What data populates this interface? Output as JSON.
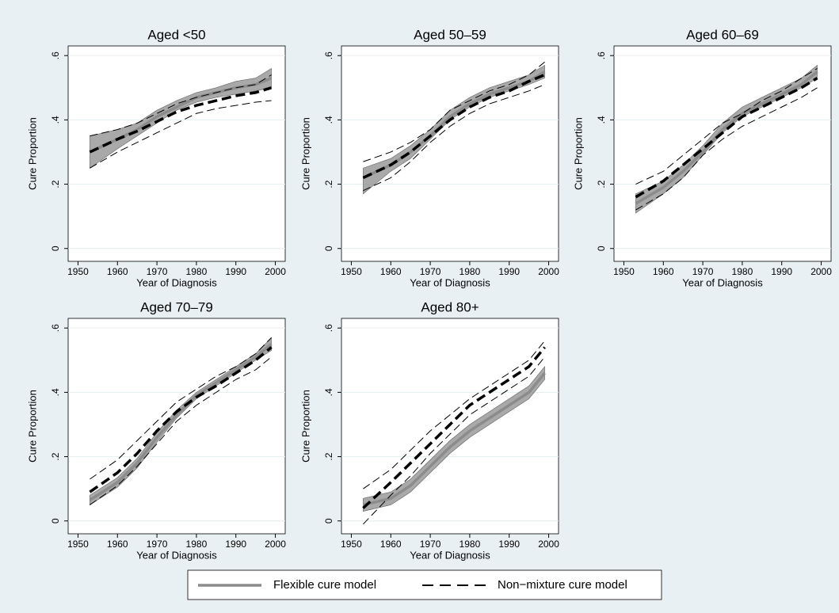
{
  "chart_data": [
    {
      "type": "line",
      "title": "Aged <50",
      "xlabel": "Year of Diagnosis",
      "ylabel": "Cure Proportion",
      "x": [
        1953,
        1960,
        1965,
        1970,
        1975,
        1980,
        1985,
        1990,
        1995,
        1999
      ],
      "xlim": [
        1947.5,
        2002.5
      ],
      "ylim": [
        -0.04,
        0.63
      ],
      "xticks": [
        1950,
        1960,
        1970,
        1980,
        1990,
        2000
      ],
      "yticks": [
        0,
        {
          "value": 0.2,
          "label": ".2"
        },
        {
          "value": 0.4,
          "label": ".4"
        },
        {
          "value": 0.6,
          "label": ".6"
        }
      ],
      "grid": true,
      "series": [
        {
          "color": "#8c8c8c",
          "values": [
            0.3,
            0.34,
            0.37,
            0.41,
            0.44,
            0.47,
            0.485,
            0.5,
            0.51,
            0.53
          ],
          "lower": [
            0.25,
            0.31,
            0.35,
            0.39,
            0.43,
            0.455,
            0.47,
            0.48,
            0.49,
            0.5
          ],
          "upper": [
            0.35,
            0.37,
            0.39,
            0.43,
            0.46,
            0.485,
            0.5,
            0.52,
            0.53,
            0.56
          ]
        },
        {
          "color": "#000000",
          "values": [
            0.3,
            0.34,
            0.365,
            0.395,
            0.425,
            0.445,
            0.46,
            0.475,
            0.485,
            0.5
          ],
          "lower": [
            0.25,
            0.3,
            0.33,
            0.36,
            0.39,
            0.42,
            0.435,
            0.445,
            0.455,
            0.46
          ],
          "upper": [
            0.35,
            0.37,
            0.39,
            0.42,
            0.45,
            0.47,
            0.485,
            0.5,
            0.51,
            0.54
          ]
        }
      ]
    },
    {
      "type": "line",
      "title": "Aged 50–59",
      "xlabel": "Year of Diagnosis",
      "ylabel": "Cure Proportion",
      "x": [
        1953,
        1960,
        1965,
        1970,
        1975,
        1980,
        1985,
        1990,
        1995,
        1999
      ],
      "xlim": [
        1947.5,
        2002.5
      ],
      "ylim": [
        -0.04,
        0.63
      ],
      "xticks": [
        1950,
        1960,
        1970,
        1980,
        1990,
        2000
      ],
      "yticks": [
        0,
        {
          "value": 0.2,
          "label": ".2"
        },
        {
          "value": 0.4,
          "label": ".4"
        },
        {
          "value": 0.6,
          "label": ".6"
        }
      ],
      "grid": true,
      "series": [
        {
          "color": "#8c8c8c",
          "values": [
            0.22,
            0.26,
            0.3,
            0.35,
            0.41,
            0.45,
            0.48,
            0.5,
            0.52,
            0.55
          ],
          "lower": [
            0.17,
            0.24,
            0.28,
            0.34,
            0.4,
            0.44,
            0.47,
            0.49,
            0.51,
            0.53
          ],
          "upper": [
            0.25,
            0.28,
            0.32,
            0.37,
            0.43,
            0.47,
            0.5,
            0.52,
            0.54,
            0.57
          ]
        },
        {
          "color": "#000000",
          "values": [
            0.22,
            0.26,
            0.3,
            0.35,
            0.4,
            0.44,
            0.47,
            0.49,
            0.52,
            0.54
          ],
          "lower": [
            0.18,
            0.22,
            0.27,
            0.33,
            0.38,
            0.42,
            0.45,
            0.47,
            0.49,
            0.51
          ],
          "upper": [
            0.27,
            0.3,
            0.33,
            0.37,
            0.43,
            0.46,
            0.49,
            0.51,
            0.54,
            0.58
          ]
        }
      ]
    },
    {
      "type": "line",
      "title": "Aged 60–69",
      "xlabel": "Year of Diagnosis",
      "ylabel": "Cure Proportion",
      "x": [
        1953,
        1960,
        1965,
        1970,
        1975,
        1980,
        1985,
        1990,
        1995,
        1999
      ],
      "xlim": [
        1947.5,
        2002.5
      ],
      "ylim": [
        -0.04,
        0.63
      ],
      "xticks": [
        1950,
        1960,
        1970,
        1980,
        1990,
        2000
      ],
      "yticks": [
        0,
        {
          "value": 0.2,
          "label": ".2"
        },
        {
          "value": 0.4,
          "label": ".4"
        },
        {
          "value": 0.6,
          "label": ".6"
        }
      ],
      "grid": true,
      "series": [
        {
          "color": "#8c8c8c",
          "values": [
            0.14,
            0.19,
            0.24,
            0.3,
            0.37,
            0.42,
            0.45,
            0.48,
            0.51,
            0.55
          ],
          "lower": [
            0.11,
            0.17,
            0.22,
            0.29,
            0.36,
            0.41,
            0.44,
            0.47,
            0.5,
            0.53
          ],
          "upper": [
            0.17,
            0.21,
            0.26,
            0.32,
            0.39,
            0.44,
            0.47,
            0.5,
            0.53,
            0.57
          ]
        },
        {
          "color": "#000000",
          "values": [
            0.16,
            0.21,
            0.26,
            0.31,
            0.36,
            0.41,
            0.44,
            0.47,
            0.5,
            0.53
          ],
          "lower": [
            0.12,
            0.17,
            0.22,
            0.29,
            0.34,
            0.38,
            0.41,
            0.44,
            0.47,
            0.5
          ],
          "upper": [
            0.2,
            0.24,
            0.29,
            0.34,
            0.39,
            0.42,
            0.46,
            0.49,
            0.53,
            0.56
          ]
        }
      ]
    },
    {
      "type": "line",
      "title": "Aged 70–79",
      "xlabel": "Year of Diagnosis",
      "ylabel": "Cure Proportion",
      "x": [
        1953,
        1960,
        1965,
        1970,
        1975,
        1980,
        1985,
        1990,
        1995,
        1999
      ],
      "xlim": [
        1947.5,
        2002.5
      ],
      "ylim": [
        -0.04,
        0.63
      ],
      "xticks": [
        1950,
        1960,
        1970,
        1980,
        1990,
        2000
      ],
      "yticks": [
        0,
        {
          "value": 0.2,
          "label": ".2"
        },
        {
          "value": 0.4,
          "label": ".4"
        },
        {
          "value": 0.6,
          "label": ".6"
        }
      ],
      "grid": true,
      "series": [
        {
          "color": "#8c8c8c",
          "values": [
            0.065,
            0.12,
            0.18,
            0.26,
            0.33,
            0.39,
            0.43,
            0.47,
            0.51,
            0.55
          ],
          "lower": [
            0.05,
            0.105,
            0.165,
            0.245,
            0.32,
            0.38,
            0.42,
            0.46,
            0.5,
            0.53
          ],
          "upper": [
            0.08,
            0.135,
            0.195,
            0.275,
            0.345,
            0.4,
            0.44,
            0.48,
            0.52,
            0.57
          ]
        },
        {
          "color": "#000000",
          "values": [
            0.09,
            0.15,
            0.21,
            0.28,
            0.34,
            0.385,
            0.42,
            0.46,
            0.5,
            0.54
          ],
          "lower": [
            0.05,
            0.11,
            0.17,
            0.24,
            0.31,
            0.36,
            0.4,
            0.44,
            0.47,
            0.51
          ],
          "upper": [
            0.13,
            0.19,
            0.25,
            0.31,
            0.37,
            0.41,
            0.45,
            0.48,
            0.52,
            0.57
          ]
        }
      ]
    },
    {
      "type": "line",
      "title": "Aged 80+",
      "xlabel": "Year of Diagnosis",
      "ylabel": "Cure Proportion",
      "x": [
        1953,
        1960,
        1965,
        1970,
        1975,
        1980,
        1985,
        1990,
        1995,
        1999
      ],
      "xlim": [
        1947.5,
        2002.5
      ],
      "ylim": [
        -0.04,
        0.63
      ],
      "xticks": [
        1950,
        1960,
        1970,
        1980,
        1990,
        2000
      ],
      "yticks": [
        0,
        {
          "value": 0.2,
          "label": ".2"
        },
        {
          "value": 0.4,
          "label": ".4"
        },
        {
          "value": 0.6,
          "label": ".6"
        }
      ],
      "grid": true,
      "series": [
        {
          "color": "#8c8c8c",
          "values": [
            0.05,
            0.07,
            0.11,
            0.17,
            0.23,
            0.28,
            0.32,
            0.36,
            0.4,
            0.46
          ],
          "lower": [
            0.03,
            0.05,
            0.09,
            0.15,
            0.21,
            0.26,
            0.3,
            0.34,
            0.38,
            0.44
          ],
          "upper": [
            0.07,
            0.09,
            0.13,
            0.19,
            0.25,
            0.3,
            0.34,
            0.38,
            0.42,
            0.48
          ]
        },
        {
          "color": "#000000",
          "values": [
            0.04,
            0.12,
            0.18,
            0.24,
            0.3,
            0.36,
            0.4,
            0.44,
            0.48,
            0.54
          ],
          "lower": [
            -0.01,
            0.08,
            0.14,
            0.21,
            0.27,
            0.33,
            0.37,
            0.41,
            0.45,
            0.51
          ],
          "upper": [
            0.1,
            0.16,
            0.22,
            0.28,
            0.33,
            0.38,
            0.42,
            0.46,
            0.5,
            0.56
          ]
        }
      ]
    }
  ],
  "legend": [
    {
      "name": "Flexible cure model",
      "color": "#8c8c8c",
      "dash": false
    },
    {
      "name": "Non−mixture cure model",
      "color": "#000000",
      "dash": true
    }
  ]
}
